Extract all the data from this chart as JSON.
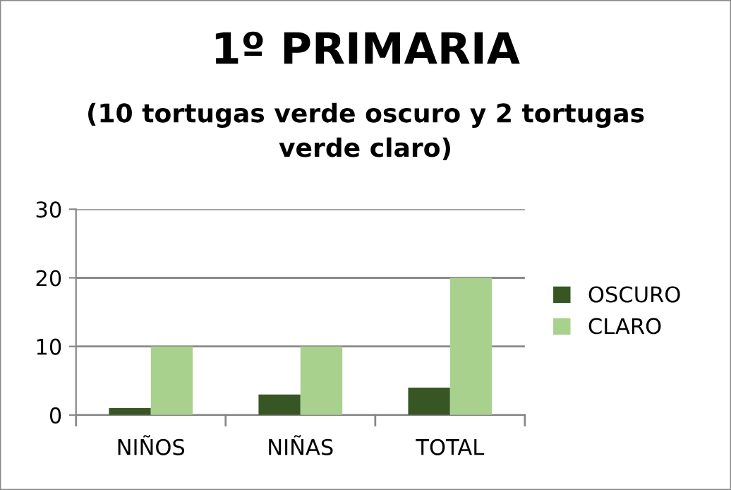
{
  "chart_data": {
    "type": "bar",
    "title": "1º PRIMARIA",
    "subtitle": "(10 tortugas verde oscuro y 2 tortugas\nverde claro)",
    "categories": [
      "NIÑOS",
      "NIÑAS",
      "TOTAL"
    ],
    "series": [
      {
        "name": "OSCURO",
        "color": "#375623",
        "values": [
          1,
          3,
          4
        ]
      },
      {
        "name": "CLARO",
        "color": "#a9d18e",
        "values": [
          10,
          10,
          20
        ]
      }
    ],
    "ylim": [
      0,
      30
    ],
    "yticks": [
      0,
      10,
      20,
      30
    ],
    "grid": "y",
    "legend": "right"
  }
}
